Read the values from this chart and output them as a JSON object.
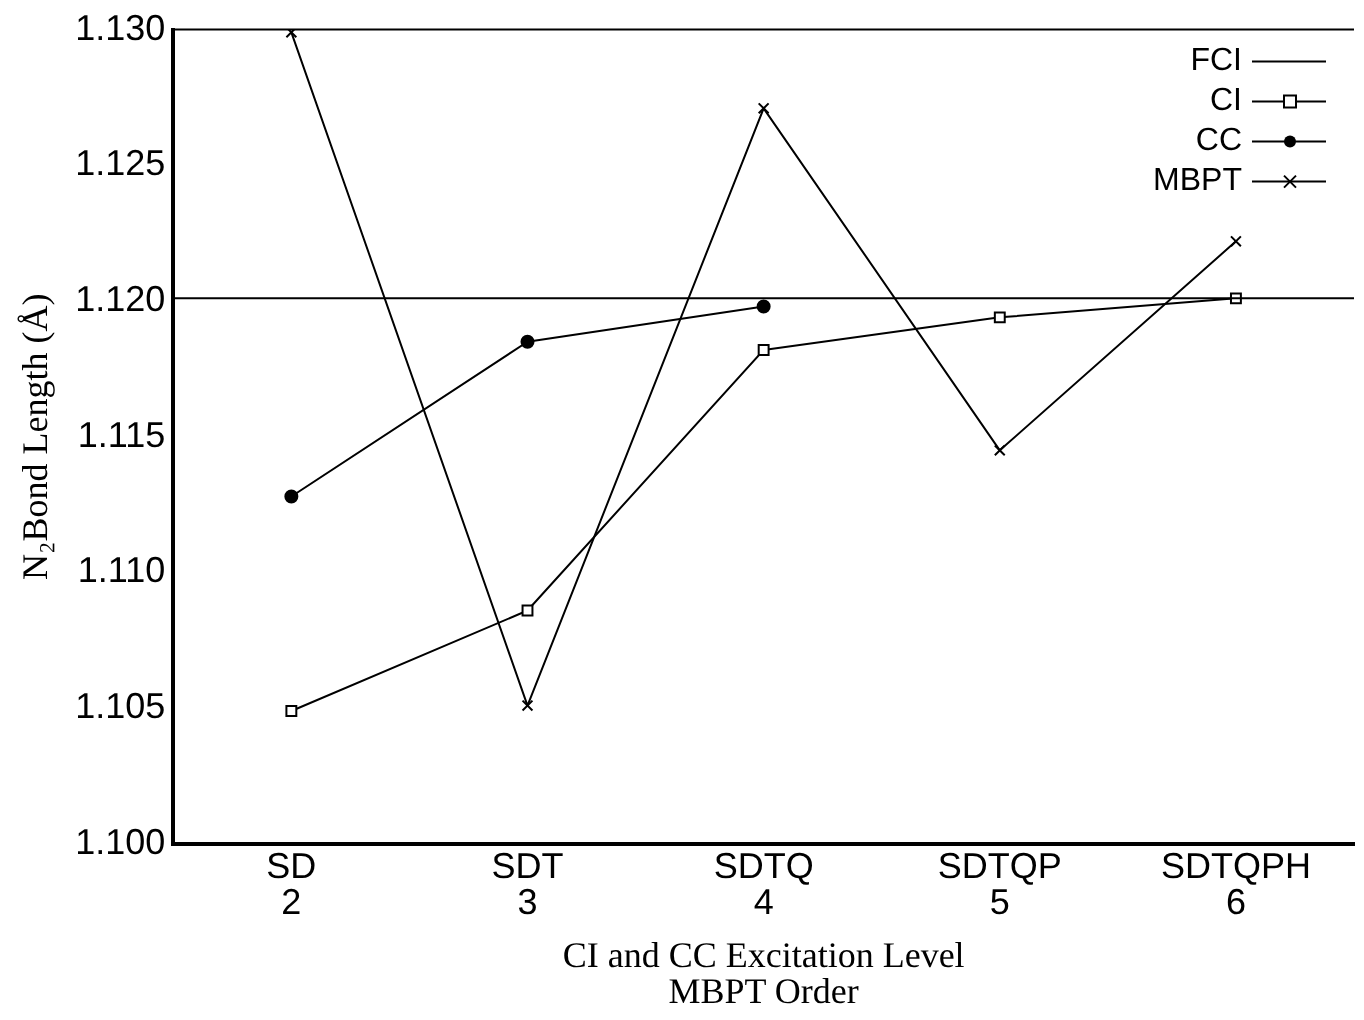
{
  "chart_data": {
    "type": "line",
    "xlabel": "CI and CC Excitation Level\nMBPT Order",
    "ylabel": "N₂Bond Length (Å)",
    "categories": [
      "SD\n2",
      "SDT\n3",
      "SDTQ\n4",
      "SDTQP\n5",
      "SDTQPH\n6"
    ],
    "ylim": [
      1.1,
      1.13
    ],
    "yticks": [
      {
        "value": 1.1,
        "label": "1.100"
      },
      {
        "value": 1.105,
        "label": "1.105"
      },
      {
        "value": 1.11,
        "label": "1.110"
      },
      {
        "value": 1.115,
        "label": "1.115"
      },
      {
        "value": 1.12,
        "label": "1.120"
      },
      {
        "value": 1.125,
        "label": "1.125"
      },
      {
        "value": 1.13,
        "label": "1.130"
      }
    ],
    "ref_lines": [
      {
        "axis": "y",
        "value": 1.1201,
        "label": "FCI",
        "color": "#000000"
      }
    ],
    "series": [
      {
        "name": "CI",
        "color": "#000000",
        "marker": "square",
        "values": [
          1.1049,
          1.1086,
          1.1182,
          1.1194,
          1.1201
        ]
      },
      {
        "name": "CC",
        "color": "#000000",
        "marker": "circle",
        "values": [
          1.1128,
          1.1185,
          1.1198,
          null,
          null
        ]
      },
      {
        "name": "MBPT",
        "color": "#000000",
        "marker": "cross",
        "values": [
          1.1299,
          1.1051,
          1.1271,
          1.1145,
          1.1222
        ]
      }
    ],
    "grid": false,
    "legend": "top right"
  }
}
